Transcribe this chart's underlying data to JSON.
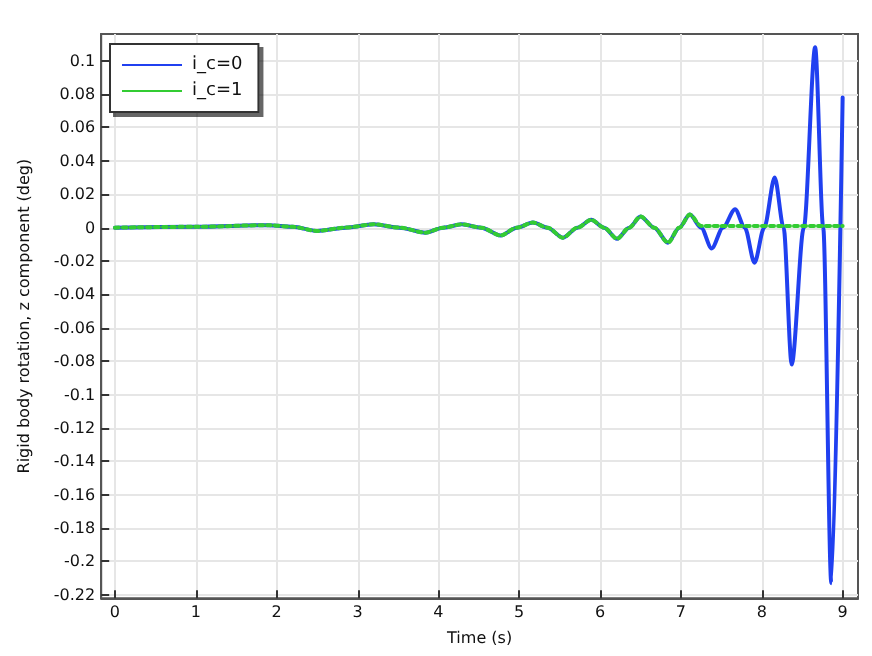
{
  "chart_data": {
    "type": "line",
    "xlabel": "Time (s)",
    "ylabel": "Rigid body rotation, z component (deg)",
    "xlim": [
      -0.17,
      9.19
    ],
    "ylim": [
      -0.222,
      0.116
    ],
    "xticks": [
      0,
      1,
      2,
      3,
      4,
      5,
      6,
      7,
      8,
      9
    ],
    "yticks": [
      -0.22,
      -0.2,
      -0.18,
      -0.16,
      -0.14,
      -0.12,
      -0.1,
      -0.08,
      -0.06,
      -0.04,
      -0.02,
      0,
      0.02,
      0.04,
      0.06,
      0.08,
      0.1
    ],
    "grid": true,
    "legend": "top left",
    "marker": "none",
    "series": [
      {
        "name": "i_c=0",
        "color": "#2040f0",
        "line_style": "solid",
        "x": [
          0,
          1,
          1.9,
          2.2,
          2.5,
          2.85,
          3.2,
          3.52,
          3.84,
          4.06,
          4.29,
          4.53,
          4.77,
          4.97,
          5.17,
          5.35,
          5.54,
          5.72,
          5.89,
          6.05,
          6.21,
          6.36,
          6.5,
          6.67,
          6.84,
          6.98,
          7.11,
          7.25,
          7.38,
          7.52,
          7.67,
          7.79,
          7.91,
          8.03,
          8.16,
          8.27,
          8.37,
          8.52,
          8.66,
          8.76,
          8.86,
          9.0
        ],
        "values": [
          0,
          0.0005,
          0.0015,
          0.0005,
          -0.002,
          0,
          0.002,
          0,
          -0.003,
          0,
          0.002,
          0,
          -0.0047,
          0,
          0.003,
          0,
          -0.006,
          0,
          0.0047,
          0,
          -0.0067,
          0,
          0.0067,
          0,
          -0.009,
          0,
          0.0078,
          0,
          -0.0125,
          0,
          0.011,
          0,
          -0.021,
          0,
          0.03,
          0,
          -0.082,
          0,
          0.108,
          0,
          -0.213,
          0.078
        ]
      },
      {
        "name": "i_c=1",
        "color": "#33cc33",
        "line_style": "dotted",
        "x": [
          0,
          1,
          1.9,
          2.2,
          2.5,
          2.85,
          3.2,
          3.52,
          3.84,
          4.06,
          4.29,
          4.53,
          4.77,
          4.97,
          5.17,
          5.35,
          5.54,
          5.72,
          5.89,
          6.05,
          6.21,
          6.36,
          6.5,
          6.67,
          6.84,
          6.98,
          7.11,
          7.25,
          9.0
        ],
        "values": [
          0,
          0.0005,
          0.0015,
          0.0005,
          -0.002,
          0,
          0.002,
          0,
          -0.003,
          0,
          0.002,
          0,
          -0.0047,
          0,
          0.003,
          0,
          -0.006,
          0,
          0.0047,
          0,
          -0.0067,
          0,
          0.0067,
          0,
          -0.009,
          0,
          0.0078,
          0.001,
          0.001
        ]
      }
    ]
  }
}
